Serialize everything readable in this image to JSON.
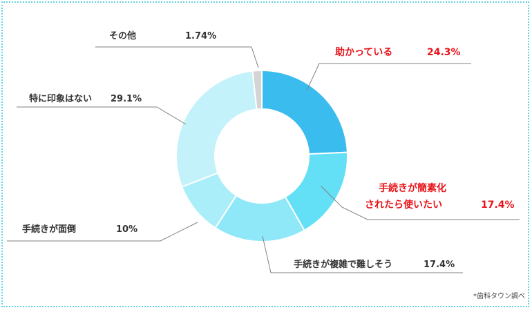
{
  "chart_data": {
    "type": "pie",
    "donut": true,
    "unit": "%",
    "slices": [
      {
        "label": "助かっている",
        "value": 24.3,
        "value_text": "24.3%",
        "color": "#3bbcee",
        "highlight": true
      },
      {
        "label": "手続きが簡素化",
        "label2": "されたら使いたい",
        "value": 17.4,
        "value_text": "17.4%",
        "color": "#63e0f5",
        "highlight": true
      },
      {
        "label": "手続きが複雑で難しそう",
        "value": 17.4,
        "value_text": "17.4%",
        "color": "#8fe8f8",
        "highlight": false
      },
      {
        "label": "手続きが面倒",
        "value": 10,
        "value_text": "10%",
        "color": "#a9eef9",
        "highlight": false
      },
      {
        "label": "特に印象はない",
        "value": 29.1,
        "value_text": "29.1%",
        "color": "#c3f2fb",
        "highlight": false
      },
      {
        "label": "その他",
        "value": 1.74,
        "value_text": "1.74%",
        "color": "#d4d4d4",
        "highlight": false
      }
    ],
    "highlight_color": "#e8141a"
  },
  "source_note": "*歯科タウン調べ"
}
